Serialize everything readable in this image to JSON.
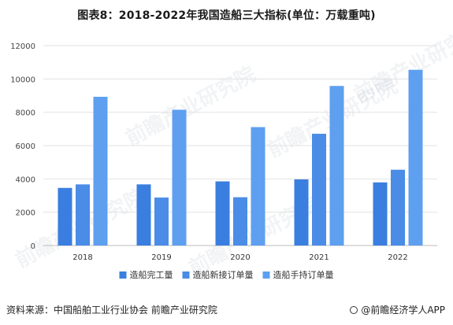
{
  "title": "图表8：2018-2022年我国造船三大指标(单位：万载重吨)",
  "source": "资料来源：中国船舶工业行业协会 前瞻产业研究院",
  "brand": "@前瞻经济学人APP",
  "watermark": "前瞻产业研究院",
  "chart_data": {
    "type": "bar",
    "title": "图表8：2018-2022年我国造船三大指标(单位：万载重吨)",
    "xlabel": "",
    "ylabel": "",
    "categories": [
      "2018",
      "2019",
      "2020",
      "2021",
      "2022"
    ],
    "ylim": [
      0,
      12000
    ],
    "yticks": [
      0,
      2000,
      4000,
      6000,
      8000,
      10000,
      12000
    ],
    "grid": true,
    "legend": "bottom",
    "series": [
      {
        "name": "造船完工量",
        "color": "#3a7ee0",
        "values": [
          3460,
          3670,
          3850,
          3970,
          3790
        ]
      },
      {
        "name": "造船新接订单量",
        "color": "#4a8ce6",
        "values": [
          3670,
          2880,
          2900,
          6710,
          4550
        ]
      },
      {
        "name": "造船手持订单量",
        "color": "#5e9ff0",
        "values": [
          8930,
          8150,
          7110,
          9580,
          10550
        ]
      }
    ]
  }
}
